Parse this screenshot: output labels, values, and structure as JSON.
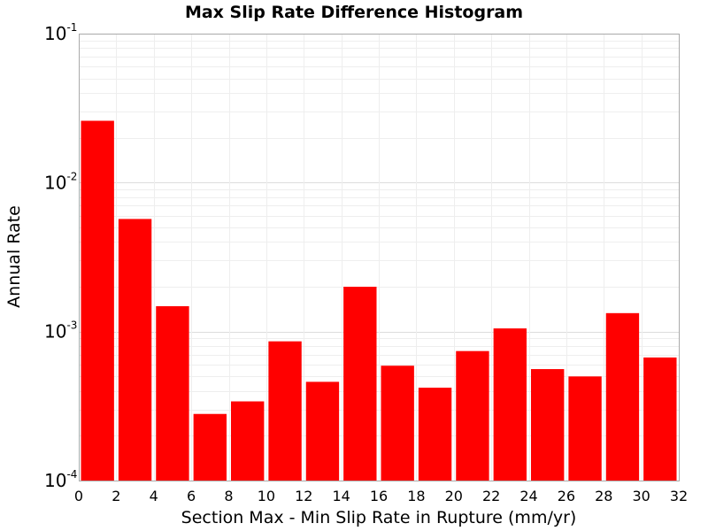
{
  "chart_data": {
    "type": "bar",
    "title": "Max Slip Rate Difference Histogram",
    "xlabel": "Section Max - Min Slip Rate in Rupture (mm/yr)",
    "ylabel": "Annual Rate",
    "x_ticks": [
      "0",
      "2",
      "4",
      "6",
      "8",
      "10",
      "12",
      "14",
      "16",
      "18",
      "20",
      "22",
      "24",
      "26",
      "28",
      "30",
      "32"
    ],
    "xlim": [
      0,
      32
    ],
    "y_scale": "log",
    "ylim": [
      0.0001,
      0.1
    ],
    "y_ticks": [
      {
        "base": "10",
        "exp": "-1"
      },
      {
        "base": "10",
        "exp": "-2"
      },
      {
        "base": "10",
        "exp": "-3"
      },
      {
        "base": "10",
        "exp": "-4"
      }
    ],
    "bin_width": 2,
    "bin_centers": [
      1,
      3,
      5,
      7,
      9,
      11,
      13,
      15,
      17,
      19,
      21,
      23,
      25,
      27,
      29,
      31
    ],
    "values": [
      0.026,
      0.0057,
      0.00148,
      0.00028,
      0.00034,
      0.00086,
      0.00046,
      0.002,
      0.00059,
      0.00042,
      0.00074,
      0.00105,
      0.00056,
      0.0005,
      0.00133,
      0.00067
    ],
    "bar_color": "#ff0000",
    "grid": true
  }
}
